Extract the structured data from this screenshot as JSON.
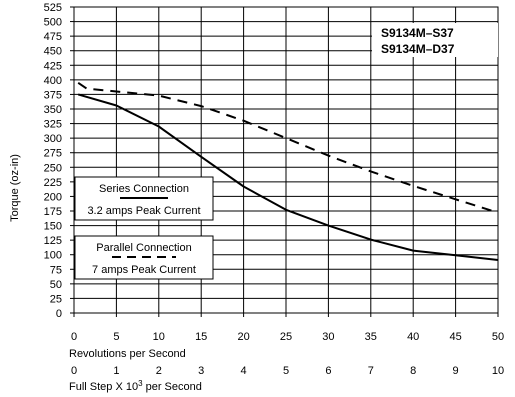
{
  "chart_data": {
    "type": "line",
    "xlabel": "Revolutions per Second",
    "xlabel2": "Full Step X 10",
    "xlabel2_sup": "3",
    "xlabel2_suffix": " per Second",
    "ylabel": "Torque (oz-in)",
    "xlim": [
      0,
      50
    ],
    "ylim": [
      0,
      525
    ],
    "x_ticks": [
      0,
      5,
      10,
      15,
      20,
      25,
      30,
      35,
      40,
      45,
      50
    ],
    "x2_ticks": [
      0,
      1,
      2,
      3,
      4,
      5,
      6,
      7,
      8,
      9,
      10
    ],
    "y_ticks": [
      0,
      25,
      50,
      75,
      100,
      125,
      150,
      175,
      200,
      225,
      250,
      275,
      300,
      325,
      350,
      375,
      400,
      425,
      450,
      475,
      500,
      525
    ],
    "grid": true,
    "model_labels": [
      "S9134M–S37",
      "S9134M–D37"
    ],
    "series": [
      {
        "name": "Series Connection",
        "subtitle": "3.2 amps Peak Current",
        "style": "solid",
        "x": [
          0.5,
          5,
          10,
          15,
          20,
          25,
          30,
          35,
          40,
          45,
          50
        ],
        "y": [
          375,
          356,
          320,
          268,
          217,
          177,
          150,
          126,
          107,
          99,
          91
        ]
      },
      {
        "name": "Parallel Connection",
        "subtitle": "7 amps Peak Current",
        "style": "dashed",
        "x": [
          0.5,
          1.5,
          5,
          10,
          15,
          20,
          25,
          30,
          35,
          40,
          45,
          50
        ],
        "y": [
          395,
          385,
          380,
          373,
          355,
          330,
          300,
          270,
          243,
          218,
          195,
          172
        ]
      }
    ],
    "colors": {
      "line": "#000000",
      "grid": "#000000",
      "background": "#ffffff"
    }
  }
}
